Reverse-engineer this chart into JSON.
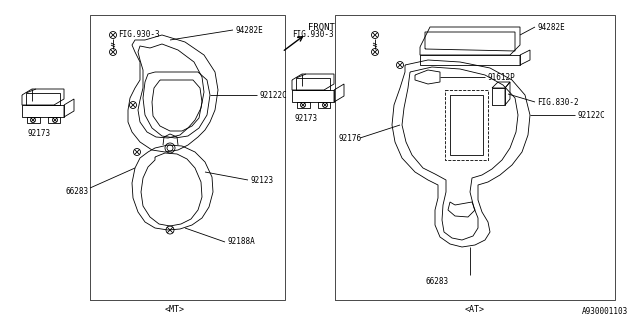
{
  "figure_number": "A930001103",
  "background_color": "#ffffff",
  "line_color": "#000000",
  "mt_label": "<MT>",
  "at_label": "<AT>",
  "front_label": "FRONT",
  "parts": {
    "mt": {
      "fig930": "FIG.930-3",
      "p94282e": "94282E",
      "p92173": "92173",
      "p92122c": "92122C",
      "p92123": "92123",
      "p66283": "66283",
      "p92188a": "92188A"
    },
    "at": {
      "fig930": "FIG.930-3",
      "p94282e": "94282E",
      "p91612p": "91612P",
      "p92173": "92173",
      "p92122c": "92122C",
      "p92176": "92176",
      "p66283": "66283",
      "pfig830": "FIG.830-2"
    }
  }
}
